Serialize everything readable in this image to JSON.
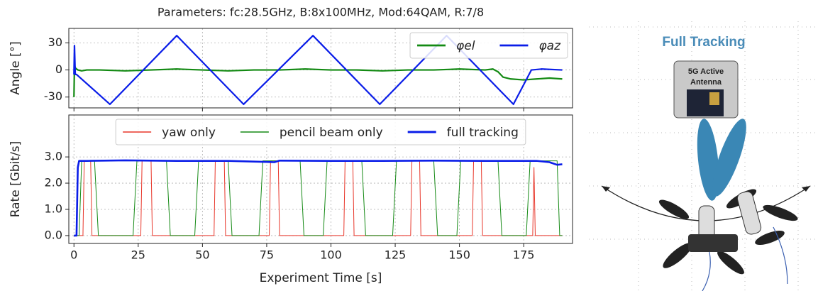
{
  "chart_data": [
    {
      "type": "line",
      "title": "Parameters: fc:28.5GHz, B:8x100MHz, Mod:64QAM, R:7/8",
      "ylabel": "Angle [°]",
      "xlim": [
        -2,
        194
      ],
      "xticks": [
        0,
        25,
        50,
        75,
        100,
        125,
        150,
        175
      ],
      "ylim": [
        -42,
        46
      ],
      "yticks": [
        -30,
        0,
        30
      ],
      "grid": true,
      "legend": "upper right",
      "series": [
        {
          "name": "φel",
          "color": "#138a13",
          "linewidth": 2.2,
          "x": [
            0,
            0.2,
            0.6,
            1.5,
            3,
            5,
            10,
            20,
            30,
            40,
            50,
            60,
            70,
            80,
            90,
            100,
            110,
            120,
            130,
            140,
            150,
            160,
            163,
            165,
            167,
            170,
            175,
            180,
            185,
            190
          ],
          "values": [
            -30,
            5,
            2,
            0,
            -1,
            0,
            0,
            -1,
            0,
            1,
            0,
            -1,
            0,
            0,
            1,
            0,
            0,
            -1,
            0,
            0,
            1,
            0,
            1,
            -2,
            -8,
            -10,
            -11,
            -10,
            -9,
            -10
          ]
        },
        {
          "name": "φaz",
          "color": "#0a1de8",
          "linewidth": 2.2,
          "x": [
            0,
            0.2,
            0.5,
            1,
            14,
            40,
            66,
            93,
            119,
            145,
            171,
            178,
            182,
            190
          ],
          "values": [
            -5,
            27,
            -5,
            -5,
            -38,
            38,
            -38,
            38,
            -38,
            38,
            -38,
            0,
            1,
            0
          ]
        }
      ]
    },
    {
      "type": "line",
      "xlabel": "Experiment Time [s]",
      "ylabel": "Rate [Gbit/s]",
      "xlim": [
        -2,
        194
      ],
      "xticks": [
        0,
        25,
        50,
        75,
        100,
        125,
        150,
        175
      ],
      "ylim": [
        -0.3,
        4.6
      ],
      "yticks": [
        {
          "value": 0,
          "label": "0.0"
        },
        {
          "value": 1,
          "label": "1.0"
        },
        {
          "value": 2,
          "label": "2.0"
        },
        {
          "value": 3,
          "label": "3.0"
        }
      ],
      "grid": true,
      "legend": "upper center",
      "series": [
        {
          "name": "yaw only",
          "color": "#e8362a",
          "linewidth": 1,
          "x": [
            0,
            3.5,
            4,
            6.5,
            7,
            26,
            26.5,
            30,
            30.5,
            54.5,
            55,
            58.5,
            59,
            76,
            76.5,
            79.5,
            80,
            105,
            105.5,
            108.5,
            109,
            131,
            131.5,
            134.5,
            135,
            155,
            155.5,
            158.5,
            159,
            178.5,
            179,
            179.5,
            190
          ],
          "values": [
            0,
            0,
            2.85,
            2.85,
            0,
            0,
            2.85,
            2.85,
            0,
            0,
            2.85,
            2.85,
            0,
            0,
            2.85,
            2.85,
            0,
            0,
            2.85,
            2.85,
            0,
            0,
            2.85,
            2.85,
            0,
            0,
            2.85,
            2.85,
            0,
            0,
            2.6,
            0,
            0
          ]
        },
        {
          "name": "pencil beam only",
          "color": "#168a16",
          "linewidth": 1,
          "x": [
            0,
            2,
            3,
            8,
            9.5,
            23,
            24.5,
            36,
            37.5,
            47,
            48.5,
            60,
            61.5,
            72,
            73.5,
            88,
            89.5,
            97,
            98.5,
            112,
            113.5,
            124,
            125.5,
            140,
            141.5,
            149,
            150.5,
            165,
            166.5,
            176,
            177.5,
            188,
            189,
            190
          ],
          "values": [
            0,
            0,
            2.85,
            2.85,
            0,
            0,
            2.85,
            2.85,
            0,
            0,
            2.85,
            2.85,
            0,
            0,
            2.85,
            2.85,
            0,
            0,
            2.85,
            2.85,
            0,
            0,
            2.85,
            2.85,
            0,
            0,
            2.85,
            2.85,
            0,
            0,
            2.85,
            2.85,
            0,
            0
          ]
        },
        {
          "name": "full tracking",
          "color": "#0a1de8",
          "linewidth": 2.6,
          "x": [
            0,
            1,
            1.5,
            2,
            5,
            20,
            40,
            60,
            78,
            80,
            100,
            120,
            140,
            160,
            180,
            185,
            188,
            190
          ],
          "values": [
            0,
            0,
            2.6,
            2.85,
            2.85,
            2.87,
            2.85,
            2.85,
            2.8,
            2.86,
            2.85,
            2.85,
            2.86,
            2.85,
            2.85,
            2.8,
            2.7,
            2.72
          ]
        }
      ]
    }
  ],
  "illustration": {
    "title": "Full Tracking",
    "antenna_label": [
      "5G Active",
      "Antenna"
    ]
  }
}
